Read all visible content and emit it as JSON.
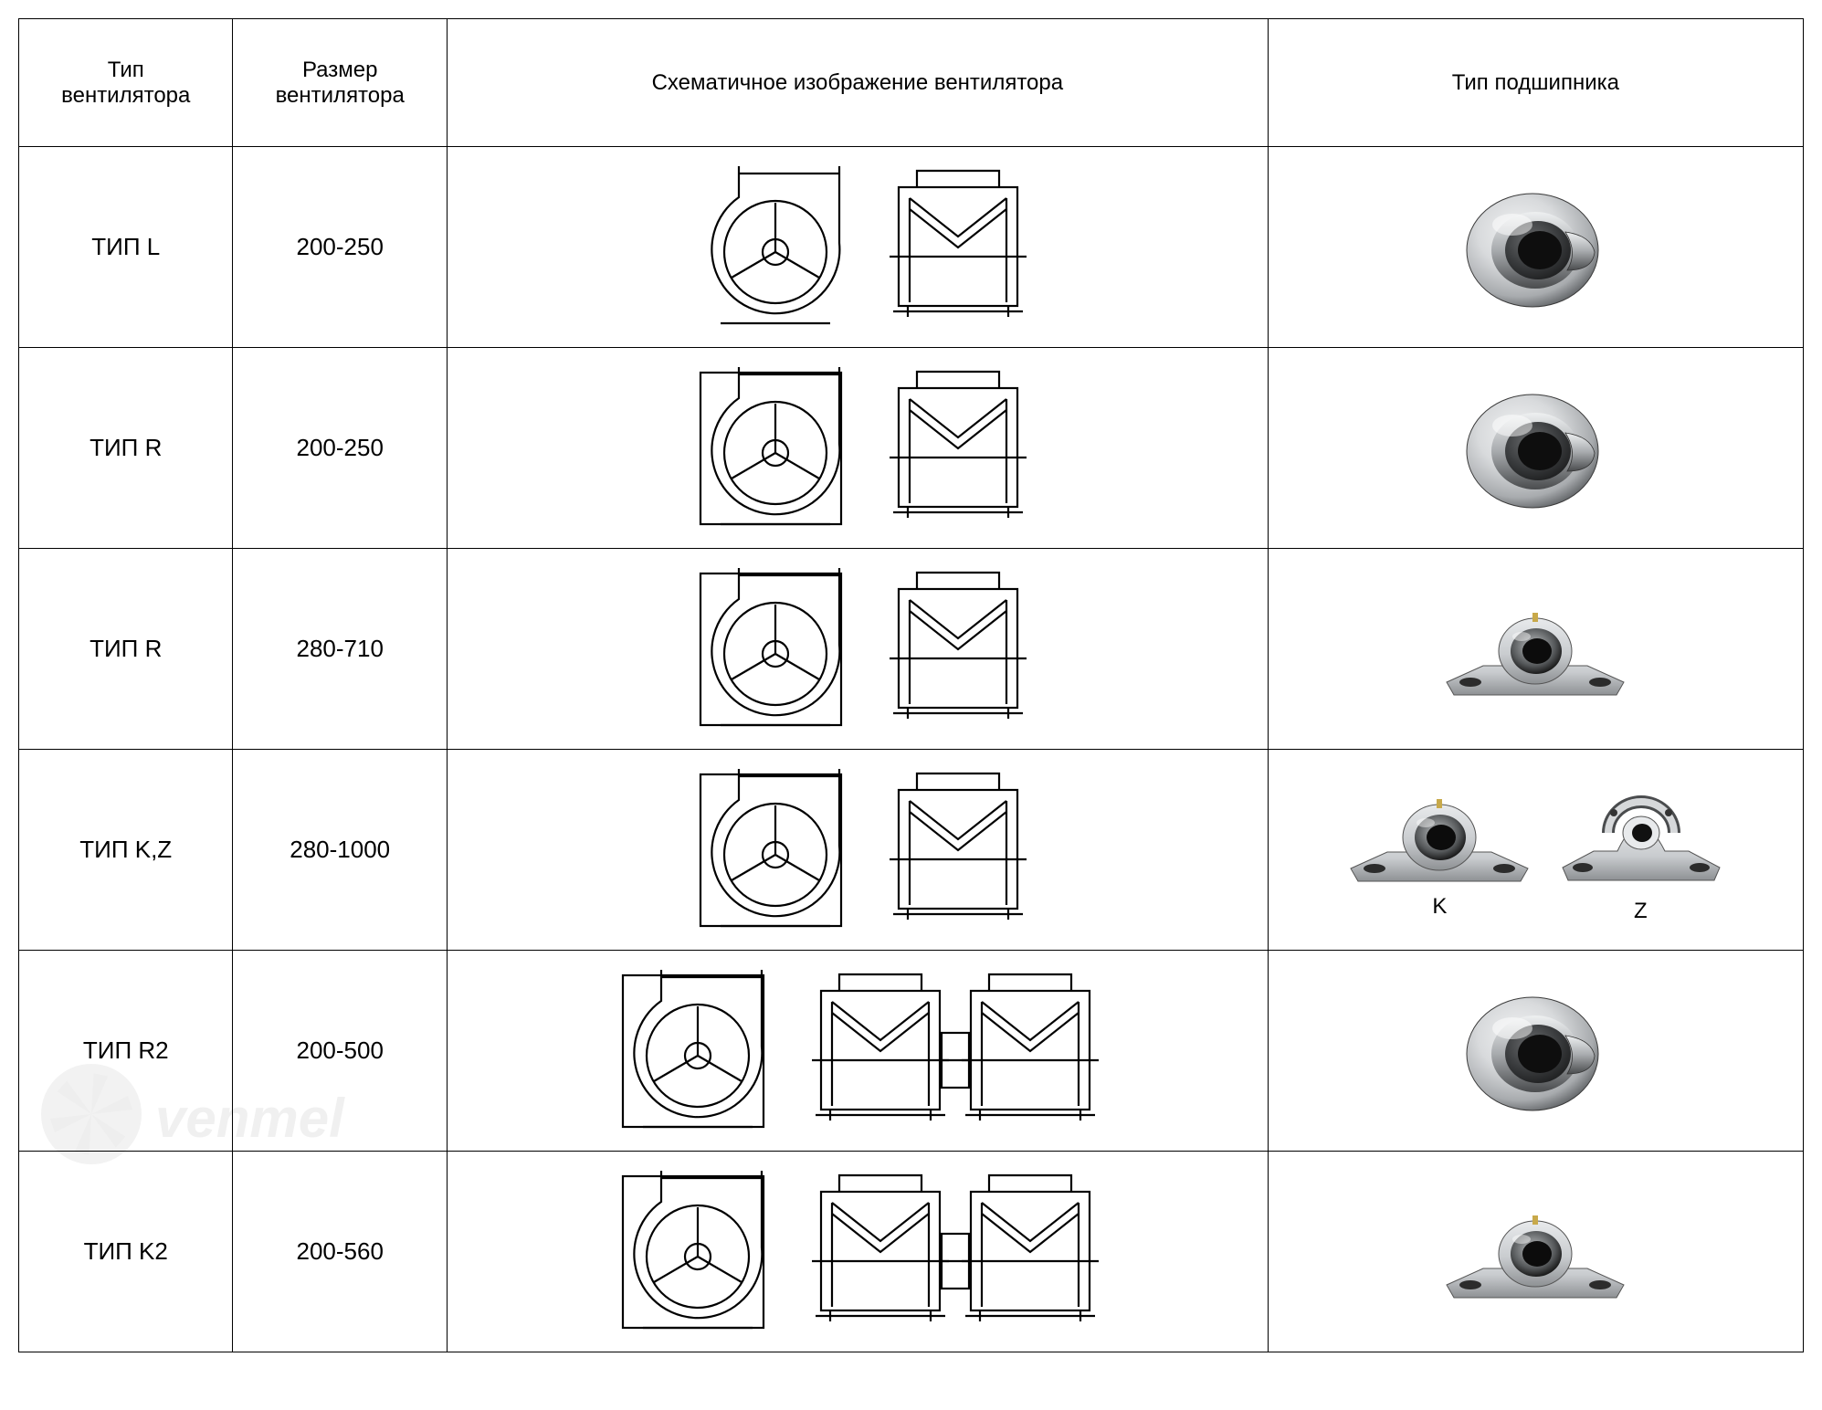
{
  "headers": {
    "fan_type": "Тип\nвентилятора",
    "fan_size": "Размер\nвентилятора",
    "schematic": "Схематичное изображение вентилятора",
    "bearing_type": "Тип подшипника"
  },
  "rows": [
    {
      "type": "ТИП L",
      "size": "200-250",
      "schematic": "scroll_open",
      "side_count": 1,
      "bearing": "insert"
    },
    {
      "type": "ТИП R",
      "size": "200-250",
      "schematic": "scroll_boxed",
      "side_count": 1,
      "bearing": "insert"
    },
    {
      "type": "ТИП R",
      "size": "280-710",
      "schematic": "scroll_boxed",
      "side_count": 1,
      "bearing": "pillow"
    },
    {
      "type": "ТИП K,Z",
      "size": "280-1000",
      "schematic": "scroll_boxed",
      "side_count": 1,
      "bearing": "pillow_kz",
      "labels": [
        "K",
        "Z"
      ]
    },
    {
      "type": "ТИП R2",
      "size": "200-500",
      "schematic": "scroll_boxed",
      "side_count": 2,
      "bearing": "insert"
    },
    {
      "type": "ТИП K2",
      "size": "200-560",
      "schematic": "scroll_boxed",
      "side_count": 2,
      "bearing": "pillow"
    }
  ],
  "colors": {
    "line": "#000000",
    "bg": "#ffffff",
    "bearing_light": "#d8dadc",
    "bearing_mid": "#a8abae",
    "bearing_dark": "#5a5d60",
    "bearing_inner": "#3a3c3e",
    "pillow_body": "#c9cccf",
    "pillow_shadow": "#8e9194"
  },
  "watermark": "venтel"
}
